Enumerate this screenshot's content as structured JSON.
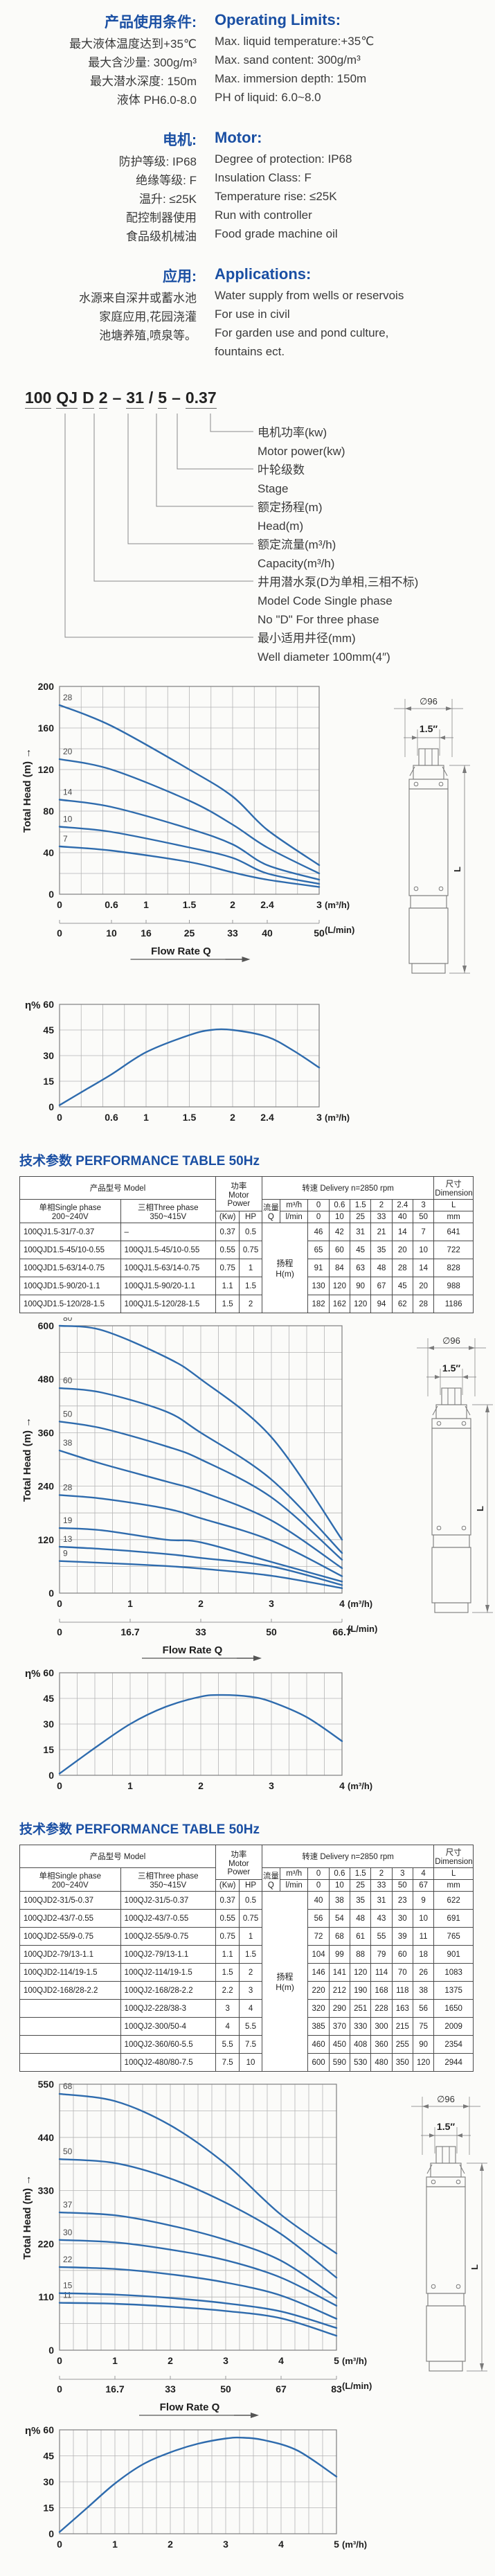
{
  "colors": {
    "heading_blue": "#1a4fa3",
    "curve_blue": "#2e6bad",
    "grid_gray": "#b5b5b5",
    "text_dark": "#222222"
  },
  "operating": {
    "zh_title": "产品使用条件:",
    "zh_lines": [
      "最大液体温度达到+35℃",
      "最大含沙量: 300g/m³",
      "最大潜水深度: 150m",
      "液体 PH6.0-8.0"
    ],
    "en_title": "Operating Limits:",
    "en_lines": [
      "Max. liquid temperature:+35℃",
      "Max. sand content: 300g/m³",
      "Max. immersion depth: 150m",
      "PH of liquid: 6.0~8.0"
    ]
  },
  "motor": {
    "zh_title": "电机:",
    "zh_lines": [
      "防护等级: IP68",
      "绝缘等级: F",
      "温升: ≤25K",
      "配控制器使用",
      "食品级机械油"
    ],
    "en_title": "Motor:",
    "en_lines": [
      "Degree of protection: IP68",
      "Insulation Class: F",
      "Temperature rise: ≤25K",
      "Run with controller",
      "Food grade machine oil"
    ]
  },
  "applications": {
    "zh_title": "应用:",
    "zh_lines": [
      "水源来自深井或蓄水池",
      "家庭应用,花园浇灌",
      "池塘养殖,喷泉等。"
    ],
    "en_title": "Applications:",
    "en_lines": [
      "Water supply from wells or reservois",
      "For use in civil",
      "For garden use and pond culture,",
      "fountains ect."
    ]
  },
  "nomenclature": {
    "model_segments": [
      {
        "t": "100",
        "u": true
      },
      {
        "t": "QJ",
        "u": true
      },
      {
        "t": "D",
        "u": true
      },
      {
        "t": "2",
        "u": true
      },
      {
        "t": "–",
        "u": false
      },
      {
        "t": "31",
        "u": true
      },
      {
        "t": "/",
        "u": false
      },
      {
        "t": "5",
        "u": true
      },
      {
        "t": "–",
        "u": false
      },
      {
        "t": "0.37",
        "u": true
      }
    ],
    "labels": [
      {
        "lines": [
          "电机功率(kw)",
          "Motor power(kw)"
        ]
      },
      {
        "lines": [
          "叶轮级数",
          "Stage"
        ]
      },
      {
        "lines": [
          "额定扬程(m)",
          "Head(m)"
        ]
      },
      {
        "lines": [
          "额定流量(m³/h)",
          "Capacity(m³/h)"
        ]
      },
      {
        "lines": [
          "井用潜水泵(D为单相,三相不标)",
          "Model Code  Single phase",
          "No \"D\" For three phase"
        ]
      },
      {
        "lines": [
          "最小适用井径(mm)",
          "Well diameter 100mm(4″)"
        ]
      }
    ]
  },
  "pump_drawing": {
    "dia": "∅96",
    "outlet": "1.5″",
    "length": "L"
  },
  "table1": {
    "title": "技术参数 PERFORMANCE TABLE 50Hz",
    "header": {
      "model": "产品型号  Model",
      "single": "单相Single phase\n200~240V",
      "three": "三相Three phase\n350~415V",
      "power": "功率\nMotor\nPower",
      "kw": "(Kw)",
      "hp": "HP",
      "delivery": "转速  Delivery n=2850 rpm",
      "flow": "流量\nQ",
      "m3h": "m³/h",
      "lmin": "l/min",
      "dims": "尺寸\nDimensions",
      "L": "L",
      "mm": "mm",
      "head_cell": "扬程\nH(m)",
      "flows_m3h": [
        "0",
        "0.6",
        "1.5",
        "2",
        "2.4",
        "3"
      ],
      "flows_lmin": [
        "0",
        "10",
        "25",
        "33",
        "40",
        "50"
      ]
    },
    "rows": [
      {
        "single": "100QJ1.5-31/7-0.37",
        "three": "–",
        "kw": "0.37",
        "hp": "0.5",
        "values": [
          "46",
          "42",
          "31",
          "21",
          "14",
          "7"
        ],
        "L": "641"
      },
      {
        "single": "100QJD1.5-45/10-0.55",
        "three": "100QJ1.5-45/10-0.55",
        "kw": "0.55",
        "hp": "0.75",
        "values": [
          "65",
          "60",
          "45",
          "35",
          "20",
          "10"
        ],
        "L": "722"
      },
      {
        "single": "100QJD1.5-63/14-0.75",
        "three": "100QJ1.5-63/14-0.75",
        "kw": "0.75",
        "hp": "1",
        "values": [
          "91",
          "84",
          "63",
          "48",
          "28",
          "14"
        ],
        "L": "828"
      },
      {
        "single": "100QJD1.5-90/20-1.1",
        "three": "100QJ1.5-90/20-1.1",
        "kw": "1.1",
        "hp": "1.5",
        "values": [
          "130",
          "120",
          "90",
          "67",
          "45",
          "20"
        ],
        "L": "988"
      },
      {
        "single": "100QJD1.5-120/28-1.5",
        "three": "100QJ1.5-120/28-1.5",
        "kw": "1.5",
        "hp": "2",
        "values": [
          "182",
          "162",
          "120",
          "94",
          "62",
          "28"
        ],
        "L": "1186"
      }
    ]
  },
  "table2": {
    "title": "技术参数 PERFORMANCE TABLE 50Hz",
    "header": {
      "model": "产品型号  Model",
      "single": "单相Single phase\n200~240V",
      "three": "三相Three phase\n350~415V",
      "power": "功率\nMotor\nPower",
      "kw": "(Kw)",
      "hp": "HP",
      "delivery": "转速  Delivery n=2850 rpm",
      "flow": "流量\nQ",
      "m3h": "m³/h",
      "lmin": "l/min",
      "dims": "尺寸\nDimensions",
      "L": "L",
      "mm": "mm",
      "head_cell": "扬程\nH(m)",
      "flows_m3h": [
        "0",
        "0.6",
        "1.5",
        "2",
        "3",
        "4"
      ],
      "flows_lmin": [
        "0",
        "10",
        "25",
        "33",
        "50",
        "67"
      ]
    },
    "rows": [
      {
        "single": "100QJD2-31/5-0.37",
        "three": "100QJ2-31/5-0.37",
        "kw": "0.37",
        "hp": "0.5",
        "values": [
          "40",
          "38",
          "35",
          "31",
          "23",
          "9"
        ],
        "L": "622"
      },
      {
        "single": "100QJD2-43/7-0.55",
        "three": "100QJ2-43/7-0.55",
        "kw": "0.55",
        "hp": "0.75",
        "values": [
          "56",
          "54",
          "48",
          "43",
          "30",
          "10"
        ],
        "L": "691"
      },
      {
        "single": "100QJD2-55/9-0.75",
        "three": "100QJ2-55/9-0.75",
        "kw": "0.75",
        "hp": "1",
        "values": [
          "72",
          "68",
          "61",
          "55",
          "39",
          "11"
        ],
        "L": "765"
      },
      {
        "single": "100QJD2-79/13-1.1",
        "three": "100QJ2-79/13-1.1",
        "kw": "1.1",
        "hp": "1.5",
        "values": [
          "104",
          "99",
          "88",
          "79",
          "60",
          "18"
        ],
        "L": "901"
      },
      {
        "single": "100QJD2-114/19-1.5",
        "three": "100QJ2-114/19-1.5",
        "kw": "1.5",
        "hp": "2",
        "values": [
          "146",
          "141",
          "120",
          "114",
          "70",
          "26"
        ],
        "L": "1083"
      },
      {
        "single": "100QJD2-168/28-2.2",
        "three": "100QJ2-168/28-2.2",
        "kw": "2.2",
        "hp": "3",
        "values": [
          "220",
          "212",
          "190",
          "168",
          "118",
          "38"
        ],
        "L": "1375"
      },
      {
        "single": "",
        "three": "100QJ2-228/38-3",
        "kw": "3",
        "hp": "4",
        "values": [
          "320",
          "290",
          "251",
          "228",
          "163",
          "56"
        ],
        "L": "1650"
      },
      {
        "single": "",
        "three": "100QJ2-300/50-4",
        "kw": "4",
        "hp": "5.5",
        "values": [
          "385",
          "370",
          "330",
          "300",
          "215",
          "75"
        ],
        "L": "2009"
      },
      {
        "single": "",
        "three": "100QJ2-360/60-5.5",
        "kw": "5.5",
        "hp": "7.5",
        "values": [
          "460",
          "450",
          "408",
          "360",
          "255",
          "90"
        ],
        "L": "2354"
      },
      {
        "single": "",
        "three": "100QJ2-480/80-7.5",
        "kw": "7.5",
        "hp": "10",
        "values": [
          "600",
          "590",
          "530",
          "480",
          "350",
          "120"
        ],
        "L": "2944"
      }
    ]
  },
  "chart_data": [
    {
      "kind": "head",
      "type": "line",
      "ylabel": "Total Head (m)",
      "xlim": [
        0,
        3
      ],
      "ylim": [
        0,
        200
      ],
      "xgrid": 0.25,
      "ygrid": 20,
      "yticks": [
        0,
        40,
        80,
        120,
        160,
        200
      ],
      "xticks": [
        0,
        0.6,
        1,
        1.5,
        2,
        2.4,
        3
      ],
      "xtick_labels": [
        "0",
        "0.6",
        "1",
        "1.5",
        "2",
        "2.4",
        "3"
      ],
      "unit_primary": "(m³/h)",
      "unit_secondary": "(L/min)",
      "flow_label": "Flow  Rate   Q",
      "secondary": {
        "positions": [
          0,
          0.6,
          1,
          1.5,
          2,
          2.4,
          3
        ],
        "labels": [
          "0",
          "10",
          "16",
          "25",
          "33",
          "40",
          "50"
        ]
      },
      "x": [
        0,
        0.6,
        1.5,
        2,
        2.4,
        3
      ],
      "series": [
        {
          "name": "7",
          "values": [
            46,
            42,
            31,
            21,
            14,
            7
          ]
        },
        {
          "name": "10",
          "values": [
            65,
            60,
            45,
            35,
            20,
            10
          ]
        },
        {
          "name": "14",
          "values": [
            91,
            84,
            63,
            48,
            28,
            14
          ]
        },
        {
          "name": "20",
          "values": [
            130,
            120,
            90,
            67,
            45,
            20
          ]
        },
        {
          "name": "28",
          "values": [
            182,
            162,
            120,
            94,
            62,
            28
          ]
        }
      ]
    },
    {
      "kind": "efficiency",
      "type": "line",
      "ylabel": "η%",
      "xlim": [
        0,
        3
      ],
      "ylim": [
        0,
        60
      ],
      "xgrid": 0.25,
      "ygrid": 15,
      "yticks": [
        0,
        15,
        30,
        45,
        60
      ],
      "xticks": [
        0,
        0.6,
        1,
        1.5,
        2,
        2.4,
        3
      ],
      "xtick_labels": [
        "0",
        "0.6",
        "1",
        "1.5",
        "2",
        "2.4",
        "3"
      ],
      "unit_primary": "(m³/h)",
      "x": [
        0,
        0.3,
        0.6,
        1,
        1.5,
        1.75,
        2,
        2.4,
        2.7,
        3
      ],
      "series": [
        {
          "name": "",
          "values": [
            1,
            10,
            19,
            32,
            42,
            45,
            45,
            41,
            33,
            23
          ]
        }
      ]
    },
    {
      "kind": "head",
      "type": "line",
      "ylabel": "Total Head (m)",
      "xlim": [
        0,
        4
      ],
      "ylim": [
        0,
        600
      ],
      "xgrid": 0.25,
      "ygrid": 60,
      "yticks": [
        0,
        120,
        240,
        360,
        480,
        600
      ],
      "xticks": [
        0,
        1,
        2,
        3,
        4
      ],
      "xtick_labels": [
        "0",
        "1",
        "2",
        "3",
        "4"
      ],
      "unit_primary": "(m³/h)",
      "unit_secondary": "(L/min)",
      "flow_label": "Flow  Rate   Q",
      "secondary": {
        "positions": [
          0,
          1,
          2,
          3,
          4
        ],
        "labels": [
          "0",
          "16.7",
          "33",
          "50",
          "66.7"
        ]
      },
      "x": [
        0,
        0.6,
        1.5,
        2,
        3,
        4
      ],
      "series": [
        {
          "name": "9",
          "values": [
            72,
            68,
            61,
            55,
            39,
            11
          ]
        },
        {
          "name": "13",
          "values": [
            104,
            99,
            88,
            79,
            60,
            18
          ]
        },
        {
          "name": "19",
          "values": [
            146,
            141,
            120,
            114,
            70,
            26
          ]
        },
        {
          "name": "28",
          "values": [
            220,
            212,
            190,
            168,
            118,
            38
          ]
        },
        {
          "name": "38",
          "values": [
            320,
            290,
            251,
            228,
            163,
            56
          ]
        },
        {
          "name": "50",
          "values": [
            385,
            370,
            330,
            300,
            215,
            75
          ]
        },
        {
          "name": "60",
          "values": [
            460,
            450,
            408,
            360,
            255,
            90
          ]
        },
        {
          "name": "80",
          "values": [
            600,
            590,
            530,
            480,
            350,
            120
          ]
        }
      ]
    },
    {
      "kind": "efficiency",
      "type": "line",
      "ylabel": "η%",
      "xlim": [
        0,
        4
      ],
      "ylim": [
        0,
        60
      ],
      "xgrid": 0.25,
      "ygrid": 15,
      "yticks": [
        0,
        15,
        30,
        45,
        60
      ],
      "xticks": [
        0,
        1,
        2,
        3,
        4
      ],
      "xtick_labels": [
        "0",
        "1",
        "2",
        "3",
        "4"
      ],
      "unit_primary": "(m³/h)",
      "x": [
        0,
        0.5,
        1,
        1.5,
        2,
        2.3,
        2.7,
        3,
        3.5,
        4
      ],
      "series": [
        {
          "name": "",
          "values": [
            1,
            16,
            30,
            40,
            46,
            47,
            46,
            43,
            34,
            20
          ]
        }
      ]
    },
    {
      "kind": "head",
      "type": "line",
      "ylabel": "Total Head (m)",
      "xlim": [
        0,
        5
      ],
      "ylim": [
        0,
        550
      ],
      "xgrid": 0.25,
      "ygrid": 55,
      "yticks": [
        0,
        110,
        220,
        330,
        440,
        550
      ],
      "xticks": [
        0,
        1,
        2,
        3,
        4,
        5
      ],
      "xtick_labels": [
        "0",
        "1",
        "2",
        "3",
        "4",
        "5"
      ],
      "unit_primary": "(m³/h)",
      "unit_secondary": "(L/min)",
      "flow_label": "Flow  Rate   Q",
      "secondary": {
        "positions": [
          0,
          1,
          2,
          3,
          4,
          5
        ],
        "labels": [
          "0",
          "16.7",
          "33",
          "50",
          "67",
          "83"
        ]
      },
      "x": [
        0,
        1,
        2,
        3,
        4,
        5
      ],
      "series": [
        {
          "name": "11",
          "values": [
            98,
            96,
            90,
            81,
            66,
            30
          ]
        },
        {
          "name": "15",
          "values": [
            118,
            115,
            108,
            97,
            80,
            46
          ]
        },
        {
          "name": "22",
          "values": [
            172,
            168,
            157,
            140,
            113,
            65
          ]
        },
        {
          "name": "30",
          "values": [
            228,
            223,
            208,
            186,
            150,
            92
          ]
        },
        {
          "name": "37",
          "values": [
            285,
            279,
            258,
            228,
            185,
            108
          ]
        },
        {
          "name": "50",
          "values": [
            395,
            387,
            355,
            305,
            240,
            150
          ]
        },
        {
          "name": "68",
          "values": [
            530,
            515,
            465,
            385,
            280,
            200
          ]
        }
      ]
    },
    {
      "kind": "efficiency",
      "type": "line",
      "ylabel": "η%",
      "xlim": [
        0,
        5
      ],
      "ylim": [
        0,
        60
      ],
      "xgrid": 0.25,
      "ygrid": 15,
      "yticks": [
        0,
        15,
        30,
        45,
        60
      ],
      "xticks": [
        0,
        1,
        2,
        3,
        4,
        5
      ],
      "xtick_labels": [
        "0",
        "1",
        "2",
        "3",
        "4",
        "5"
      ],
      "unit_primary": "(m³/h)",
      "x": [
        0,
        0.5,
        1,
        1.5,
        2,
        2.5,
        3,
        3.3,
        3.7,
        4.3,
        5
      ],
      "series": [
        {
          "name": "",
          "values": [
            1,
            15,
            29,
            40,
            47,
            52,
            55,
            55.5,
            54,
            48,
            33
          ]
        }
      ]
    }
  ]
}
